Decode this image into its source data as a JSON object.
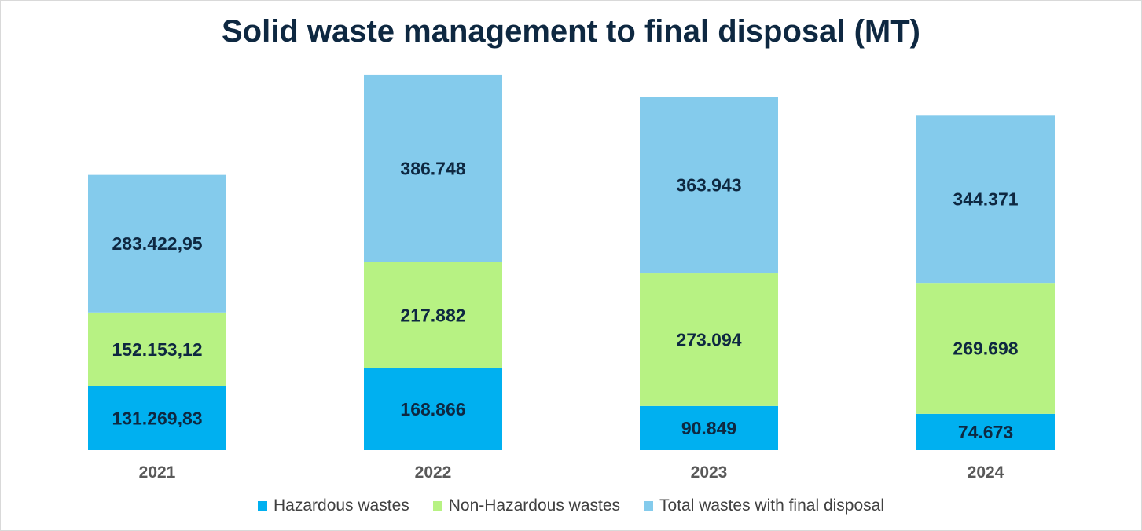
{
  "chart_data": {
    "type": "bar",
    "stacked": true,
    "title": "Solid waste management to final disposal (MT)",
    "xlabel": "",
    "ylabel": "",
    "ylim": [
      0,
      830000
    ],
    "grid": false,
    "legend_position": "bottom",
    "categories": [
      "2021",
      "2022",
      "2023",
      "2024"
    ],
    "series": [
      {
        "name": "Hazardous wastes",
        "color": "#00b0f0",
        "values": [
          131269.83,
          168866,
          90849,
          74673
        ],
        "labels": [
          "131.269,83",
          "168.866",
          "90.849",
          "74.673"
        ]
      },
      {
        "name": "Non-Hazardous wastes",
        "color": "#b7f283",
        "values": [
          152153.12,
          217882,
          273094,
          269698
        ],
        "labels": [
          "152.153,12",
          "217.882",
          "273.094",
          "269.698"
        ]
      },
      {
        "name": "Total wastes with final disposal",
        "color": "#84cbec",
        "values": [
          283422.95,
          386748,
          363943,
          344371
        ],
        "labels": [
          "283.422,95",
          "386.748",
          "363.943",
          "344.371"
        ]
      }
    ]
  }
}
